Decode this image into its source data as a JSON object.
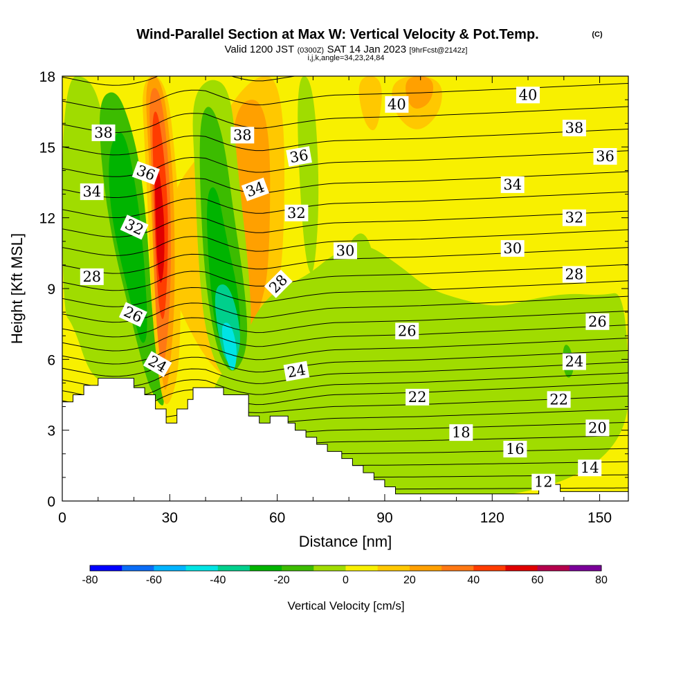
{
  "header": {
    "title": "Wind-Parallel Section at Max W: Vertical Velocity & Pot.Temp.",
    "title_unit": "(C)",
    "valid_prefix": "Valid 1200 JST",
    "valid_utc": "(0300Z)",
    "valid_date": "SAT 14 Jan 2023",
    "forecast": "[9hrFcst@2142z]",
    "meta": "i,j,k,angle=34,23,24,84"
  },
  "chart_data": {
    "type": "contour-section",
    "xlabel": "Distance [nm]",
    "ylabel": "Height [Kft MSL]",
    "xlim": [
      0,
      158
    ],
    "ylim": [
      0,
      18
    ],
    "x_ticks": [
      0,
      30,
      60,
      90,
      120,
      150
    ],
    "y_ticks": [
      0,
      3,
      6,
      9,
      12,
      15,
      18
    ],
    "colorbar": {
      "title": "Vertical Velocity [cm/s]",
      "levels": [
        -80,
        -70,
        -60,
        -50,
        -40,
        -30,
        -20,
        -10,
        0,
        10,
        20,
        30,
        40,
        50,
        60,
        70,
        80
      ],
      "tick_labels": [
        "-80",
        "-60",
        "-40",
        "-20",
        "0",
        "20",
        "40",
        "60",
        "80"
      ],
      "colors": [
        "#0000ff",
        "#0a6cf6",
        "#00b4ff",
        "#00e4e4",
        "#00d08c",
        "#00b400",
        "#3cbc00",
        "#a0dc00",
        "#f8f000",
        "#ffc800",
        "#ffa000",
        "#ff7814",
        "#ff3c00",
        "#e00000",
        "#b4004c",
        "#7a0099"
      ]
    },
    "terrain_kft": [
      [
        0,
        4.2
      ],
      [
        3,
        4.2
      ],
      [
        3,
        4.5
      ],
      [
        6,
        4.5
      ],
      [
        6,
        4.9
      ],
      [
        10,
        4.9
      ],
      [
        10,
        5.2
      ],
      [
        20,
        5.2
      ],
      [
        20,
        4.8
      ],
      [
        23,
        4.8
      ],
      [
        23,
        4.5
      ],
      [
        26,
        4.5
      ],
      [
        26,
        3.9
      ],
      [
        29,
        3.9
      ],
      [
        29,
        3.3
      ],
      [
        32,
        3.3
      ],
      [
        32,
        3.9
      ],
      [
        35,
        3.9
      ],
      [
        35,
        4.3
      ],
      [
        36.5,
        4.3
      ],
      [
        36.5,
        4.8
      ],
      [
        45,
        4.8
      ],
      [
        45,
        4.5
      ],
      [
        52,
        4.5
      ],
      [
        52,
        3.6
      ],
      [
        55,
        3.6
      ],
      [
        55,
        3.3
      ],
      [
        58,
        3.3
      ],
      [
        58,
        3.6
      ],
      [
        63,
        3.6
      ],
      [
        63,
        3.3
      ],
      [
        65,
        3.3
      ],
      [
        65,
        3.0
      ],
      [
        68,
        3.0
      ],
      [
        68,
        2.7
      ],
      [
        71,
        2.7
      ],
      [
        71,
        2.4
      ],
      [
        74,
        2.4
      ],
      [
        74,
        2.1
      ],
      [
        78,
        2.1
      ],
      [
        78,
        1.8
      ],
      [
        81,
        1.8
      ],
      [
        81,
        1.5
      ],
      [
        84,
        1.5
      ],
      [
        84,
        1.2
      ],
      [
        87,
        1.2
      ],
      [
        87,
        0.9
      ],
      [
        90,
        0.9
      ],
      [
        90,
        0.6
      ],
      [
        93,
        0.6
      ],
      [
        93,
        0.3
      ],
      [
        133,
        0.3
      ],
      [
        133,
        0.7
      ],
      [
        139,
        0.7
      ],
      [
        139,
        0.4
      ],
      [
        158,
        0.4
      ]
    ],
    "vertical_velocity_regions": [
      {
        "value": 10,
        "polygon": [
          [
            30,
            13
          ],
          [
            40,
            15
          ],
          [
            52,
            18
          ],
          [
            62,
            18
          ],
          [
            62,
            10
          ],
          [
            58,
            8
          ],
          [
            53,
            6
          ],
          [
            47,
            5
          ],
          [
            40,
            6
          ],
          [
            33,
            8
          ],
          [
            28,
            10
          ]
        ]
      },
      {
        "value": 20,
        "polygon": [
          [
            48,
            17
          ],
          [
            58,
            17
          ],
          [
            58,
            10
          ],
          [
            55,
            8
          ],
          [
            51,
            6.5
          ],
          [
            49,
            9
          ],
          [
            47,
            13
          ]
        ]
      },
      {
        "value": 10,
        "polygon": [
          [
            92,
            18
          ],
          [
            106,
            18
          ],
          [
            106,
            16.5
          ],
          [
            99,
            15.5
          ],
          [
            92,
            16.5
          ]
        ]
      },
      {
        "value": 20,
        "polygon": [
          [
            95,
            18
          ],
          [
            104,
            18
          ],
          [
            103,
            16.8
          ],
          [
            97,
            16.5
          ]
        ]
      },
      {
        "value": 10,
        "polygon": [
          [
            82,
            18
          ],
          [
            90,
            18
          ],
          [
            88,
            15.5
          ],
          [
            84,
            16
          ]
        ]
      },
      {
        "value": -10,
        "polygon": [
          [
            50,
            6.5
          ],
          [
            54,
            8
          ],
          [
            60,
            9
          ],
          [
            68,
            9.5
          ],
          [
            76,
            10.5
          ],
          [
            84,
            11
          ],
          [
            94,
            10
          ],
          [
            102,
            9
          ],
          [
            112,
            8.5
          ],
          [
            122,
            8.2
          ],
          [
            132,
            8.6
          ],
          [
            142,
            8.8
          ],
          [
            150,
            8.7
          ],
          [
            158,
            8.9
          ],
          [
            158,
            0
          ],
          [
            40,
            0
          ],
          [
            40,
            4.5
          ]
        ]
      },
      {
        "value": -10,
        "polygon": [
          [
            65,
            18
          ],
          [
            70,
            18
          ],
          [
            72,
            13
          ],
          [
            70,
            9
          ],
          [
            67,
            11
          ]
        ]
      },
      {
        "value": -10,
        "polygon": [
          [
            80,
            11
          ],
          [
            84,
            11.5
          ],
          [
            87,
            10.5
          ],
          [
            85,
            10
          ],
          [
            81,
            10.2
          ]
        ]
      },
      {
        "value": -10,
        "polygon": [
          [
            0,
            18
          ],
          [
            8,
            18
          ],
          [
            12,
            16
          ],
          [
            14,
            14
          ],
          [
            16,
            11
          ],
          [
            20,
            8
          ],
          [
            24,
            5
          ],
          [
            28,
            3
          ],
          [
            20,
            3
          ],
          [
            14,
            5
          ],
          [
            8,
            5.2
          ],
          [
            3,
            7.5
          ],
          [
            0,
            8
          ]
        ]
      },
      {
        "value": -20,
        "polygon": [
          [
            10,
            17
          ],
          [
            15,
            17.5
          ],
          [
            19,
            16
          ],
          [
            22,
            14
          ],
          [
            24,
            11
          ],
          [
            25,
            8
          ],
          [
            27,
            5.5
          ],
          [
            29,
            3.8
          ],
          [
            25,
            4.5
          ],
          [
            22,
            6
          ],
          [
            18,
            8.5
          ],
          [
            14,
            11
          ],
          [
            11,
            14
          ]
        ]
      },
      {
        "value": -30,
        "polygon": [
          [
            13,
            15
          ],
          [
            17,
            16
          ],
          [
            21,
            13
          ],
          [
            23,
            10
          ],
          [
            24,
            7
          ],
          [
            22,
            6.5
          ],
          [
            19,
            8.5
          ],
          [
            15,
            11
          ],
          [
            13,
            13
          ]
        ]
      },
      {
        "value": -10,
        "polygon": [
          [
            36,
            17
          ],
          [
            41,
            18
          ],
          [
            47,
            17.5
          ],
          [
            49,
            14
          ],
          [
            52,
            10
          ],
          [
            53,
            7
          ],
          [
            50,
            5.5
          ],
          [
            45,
            5
          ],
          [
            40,
            7
          ],
          [
            38,
            10
          ],
          [
            37,
            14
          ]
        ]
      },
      {
        "value": -20,
        "polygon": [
          [
            38,
            16
          ],
          [
            41,
            17
          ],
          [
            45,
            15.5
          ],
          [
            48,
            12
          ],
          [
            51,
            9
          ],
          [
            52,
            6.5
          ],
          [
            48,
            5.3
          ],
          [
            44,
            6
          ],
          [
            41,
            8
          ],
          [
            39,
            11
          ]
        ]
      },
      {
        "value": -30,
        "polygon": [
          [
            40,
            13
          ],
          [
            43,
            13.5
          ],
          [
            46,
            11
          ],
          [
            49,
            9
          ],
          [
            50,
            7
          ],
          [
            47,
            6
          ],
          [
            43,
            7
          ],
          [
            41,
            9.5
          ]
        ]
      },
      {
        "value": -40,
        "polygon": [
          [
            42,
            9
          ],
          [
            46,
            9.3
          ],
          [
            49,
            8
          ],
          [
            50,
            6.5
          ],
          [
            47,
            5.6
          ],
          [
            44,
            6.5
          ]
        ]
      },
      {
        "value": -50,
        "polygon": [
          [
            44,
            7.5
          ],
          [
            47,
            7.6
          ],
          [
            49,
            6.4
          ],
          [
            48,
            5.4
          ],
          [
            46,
            5.8
          ]
        ]
      },
      {
        "value": -20,
        "polygon": [
          [
            140,
            6.7
          ],
          [
            142,
            6.5
          ],
          [
            143,
            5.5
          ],
          [
            141,
            5.1
          ],
          [
            139.5,
            5.8
          ]
        ]
      },
      {
        "value": 10,
        "polygon": [
          [
            22,
            18
          ],
          [
            29,
            18
          ],
          [
            32,
            14
          ],
          [
            33,
            10
          ],
          [
            33,
            7
          ],
          [
            32,
            5
          ],
          [
            29,
            3.8
          ],
          [
            27,
            5
          ],
          [
            25,
            8
          ],
          [
            24,
            12
          ],
          [
            23,
            15
          ]
        ]
      },
      {
        "value": 20,
        "polygon": [
          [
            23,
            18
          ],
          [
            28,
            18
          ],
          [
            31,
            14
          ],
          [
            31.5,
            10
          ],
          [
            31,
            7
          ],
          [
            29,
            4.3
          ],
          [
            27.5,
            5.5
          ],
          [
            26,
            8
          ],
          [
            25,
            12
          ],
          [
            24,
            15
          ]
        ]
      },
      {
        "value": 30,
        "polygon": [
          [
            24,
            17.5
          ],
          [
            27.5,
            17.5
          ],
          [
            30,
            14
          ],
          [
            30.5,
            10
          ],
          [
            29.5,
            7
          ],
          [
            28,
            5.3
          ],
          [
            26.5,
            7
          ],
          [
            25.5,
            10
          ],
          [
            25,
            14
          ]
        ]
      },
      {
        "value": 40,
        "polygon": [
          [
            25,
            16.5
          ],
          [
            27,
            16.5
          ],
          [
            29.5,
            13
          ],
          [
            29.5,
            10
          ],
          [
            28.5,
            7.5
          ],
          [
            27,
            8
          ],
          [
            26,
            10.5
          ],
          [
            25.5,
            13.5
          ]
        ]
      },
      {
        "value": 50,
        "polygon": [
          [
            25.8,
            14
          ],
          [
            27,
            14.2
          ],
          [
            28.5,
            12
          ],
          [
            28.5,
            10
          ],
          [
            27.5,
            9
          ],
          [
            26.5,
            10
          ],
          [
            26,
            12
          ]
        ]
      }
    ],
    "isentrope_anchors": [
      [
        0,
        4.3
      ],
      [
        25,
        3.9
      ],
      [
        40,
        4.3
      ],
      [
        55,
        4.2
      ],
      [
        75,
        4.5
      ],
      [
        100,
        4.6
      ],
      [
        130,
        4.8
      ],
      [
        158,
        5.0
      ]
    ],
    "isentrope_base_theta": 10,
    "isentrope_step": 1,
    "isentrope_spacing_kft": 0.5,
    "isentrope_count": 34,
    "isentrope_labels": [
      {
        "text": "38",
        "x": 16,
        "y": 15.6,
        "angle": 0
      },
      {
        "text": "36",
        "x": 32.5,
        "y": 13.9,
        "angle": 20
      },
      {
        "text": "34",
        "x": 11.5,
        "y": 13.1,
        "angle": 0
      },
      {
        "text": "32",
        "x": 28,
        "y": 11.6,
        "angle": 25
      },
      {
        "text": "28",
        "x": 11.5,
        "y": 9.5,
        "angle": 0
      },
      {
        "text": "26",
        "x": 27.5,
        "y": 7.9,
        "angle": 25
      },
      {
        "text": "24",
        "x": 37,
        "y": 5.8,
        "angle": 30
      },
      {
        "text": "38",
        "x": 70,
        "y": 15.5,
        "angle": 0
      },
      {
        "text": "36",
        "x": 92,
        "y": 14.6,
        "angle": -10
      },
      {
        "text": "34",
        "x": 75,
        "y": 13.2,
        "angle": -20
      },
      {
        "text": "32",
        "x": 91,
        "y": 12.2,
        "angle": 0
      },
      {
        "text": "30",
        "x": 110,
        "y": 10.6,
        "angle": 0
      },
      {
        "text": "28",
        "x": 84,
        "y": 9.2,
        "angle": -45
      },
      {
        "text": "26",
        "x": 134,
        "y": 7.2,
        "angle": 0
      },
      {
        "text": "24",
        "x": 91,
        "y": 5.5,
        "angle": -10
      },
      {
        "text": "40",
        "x": 130,
        "y": 16.8,
        "angle": 0
      },
      {
        "text": "40",
        "x": 181,
        "y": 17.2,
        "angle": 0
      },
      {
        "text": "38",
        "x": 199,
        "y": 15.8,
        "angle": 0
      },
      {
        "text": "36",
        "x": 211,
        "y": 14.6,
        "angle": 0
      },
      {
        "text": "34",
        "x": 175,
        "y": 13.4,
        "angle": 0
      },
      {
        "text": "32",
        "x": 199,
        "y": 12.0,
        "angle": 0
      },
      {
        "text": "30",
        "x": 175,
        "y": 10.7,
        "angle": 0
      },
      {
        "text": "28",
        "x": 199,
        "y": 9.6,
        "angle": 0
      },
      {
        "text": "26",
        "x": 208,
        "y": 7.6,
        "angle": 0
      },
      {
        "text": "24",
        "x": 199,
        "y": 5.9,
        "angle": 0
      },
      {
        "text": "22",
        "x": 138,
        "y": 4.4,
        "angle": 0
      },
      {
        "text": "22",
        "x": 193,
        "y": 4.3,
        "angle": 0
      },
      {
        "text": "20",
        "x": 208,
        "y": 3.1,
        "angle": 0
      },
      {
        "text": "18",
        "x": 155,
        "y": 2.9,
        "angle": 0
      },
      {
        "text": "16",
        "x": 176,
        "y": 2.2,
        "angle": 0
      },
      {
        "text": "14",
        "x": 205,
        "y": 1.4,
        "angle": 0
      },
      {
        "text": "12",
        "x": 187,
        "y": 0.8,
        "angle": 0
      }
    ]
  }
}
